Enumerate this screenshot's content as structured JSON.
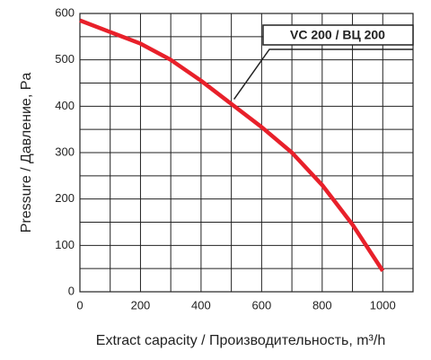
{
  "chart_data": {
    "type": "line",
    "x_label": "Extract capacity / Производительность, m³/h",
    "y_label": "Pressure / Давление, Pa",
    "annotation": "VC 200 / ВЦ 200",
    "x": [
      0,
      100,
      200,
      300,
      400,
      500,
      600,
      700,
      800,
      900,
      1000
    ],
    "series": [
      {
        "name": "VC 200 / ВЦ 200",
        "color": "#e8202a",
        "values": [
          585,
          560,
          535,
          500,
          455,
          405,
          355,
          300,
          230,
          145,
          45
        ]
      }
    ],
    "xlim": [
      0,
      1100
    ],
    "xticks": [
      0,
      200,
      400,
      600,
      800,
      1000
    ],
    "ylim": [
      0,
      600
    ],
    "yticks": [
      0,
      100,
      200,
      300,
      400,
      500,
      600
    ],
    "x_minor_grid": [
      100,
      300,
      500,
      700,
      900,
      1100
    ],
    "y_minor_grid": [
      50,
      150,
      250,
      350,
      450,
      550
    ],
    "grid": true
  }
}
